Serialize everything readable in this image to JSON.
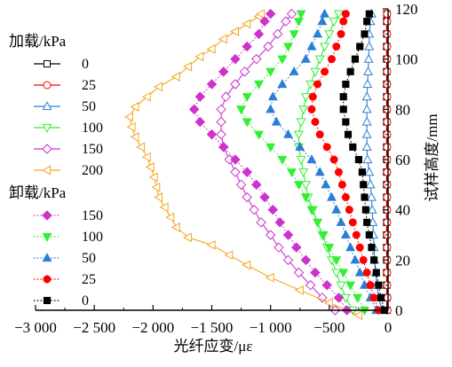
{
  "chart_data": {
    "type": "line",
    "xlabel": "光纤应变/με",
    "ylabel": "试样高度/mm",
    "xlim": [
      -3000,
      0
    ],
    "ylim": [
      0,
      120
    ],
    "x_ticks": [
      -3000,
      -2500,
      -2000,
      -1500,
      -1000,
      -500,
      0
    ],
    "x_tick_labels": [
      "−3 000",
      "−2 500",
      "−2 000",
      "−1 500",
      "−1 000",
      "−500",
      "0"
    ],
    "y_ticks": [
      0,
      20,
      40,
      60,
      80,
      100,
      120
    ],
    "y_tick_labels": [
      "0",
      "20",
      "40",
      "60",
      "80",
      "100",
      "120"
    ],
    "legend_groups": [
      {
        "title": "加载/kPa"
      },
      {
        "title": "卸载/kPa"
      }
    ],
    "series": [
      {
        "name": "0",
        "group": 0,
        "color": "#000000",
        "marker": "square",
        "filled": false,
        "line": "solid",
        "points": [
          [
            -10,
            0
          ],
          [
            -10,
            5
          ],
          [
            -12,
            10
          ],
          [
            -12,
            15
          ],
          [
            -12,
            20
          ],
          [
            -12,
            25
          ],
          [
            -12,
            30
          ],
          [
            -12,
            35
          ],
          [
            -12,
            40
          ],
          [
            -12,
            45
          ],
          [
            -12,
            50
          ],
          [
            -12,
            55
          ],
          [
            -12,
            60
          ],
          [
            -12,
            65
          ],
          [
            -12,
            70
          ],
          [
            -12,
            75
          ],
          [
            -12,
            80
          ],
          [
            -12,
            85
          ],
          [
            -12,
            90
          ],
          [
            -12,
            95
          ],
          [
            -12,
            100
          ],
          [
            -12,
            105
          ],
          [
            -12,
            110
          ],
          [
            -12,
            115
          ],
          [
            -10,
            118
          ]
        ]
      },
      {
        "name": "25",
        "group": 0,
        "color": "#ff0000",
        "marker": "circle",
        "filled": false,
        "line": "solid",
        "points": [
          [
            -5,
            0
          ],
          [
            -5,
            5
          ],
          [
            -8,
            10
          ],
          [
            -8,
            15
          ],
          [
            -8,
            20
          ],
          [
            -8,
            25
          ],
          [
            -8,
            30
          ],
          [
            -8,
            35
          ],
          [
            -8,
            40
          ],
          [
            -8,
            45
          ],
          [
            -8,
            50
          ],
          [
            -8,
            55
          ],
          [
            -8,
            60
          ],
          [
            -8,
            65
          ],
          [
            -8,
            70
          ],
          [
            -8,
            75
          ],
          [
            -8,
            80
          ],
          [
            -8,
            85
          ],
          [
            -8,
            90
          ],
          [
            -8,
            95
          ],
          [
            -8,
            100
          ],
          [
            -8,
            105
          ],
          [
            -8,
            110
          ],
          [
            -8,
            115
          ],
          [
            -8,
            118
          ]
        ]
      },
      {
        "name": "50",
        "group": 0,
        "color": "#2a7fd4",
        "marker": "triangle-up",
        "filled": false,
        "line": "solid",
        "points": [
          [
            -50,
            0
          ],
          [
            -80,
            5
          ],
          [
            -95,
            10
          ],
          [
            -105,
            15
          ],
          [
            -115,
            20
          ],
          [
            -120,
            25
          ],
          [
            -125,
            30
          ],
          [
            -130,
            35
          ],
          [
            -135,
            40
          ],
          [
            -140,
            45
          ],
          [
            -150,
            50
          ],
          [
            -160,
            55
          ],
          [
            -175,
            60
          ],
          [
            -180,
            65
          ],
          [
            -180,
            70
          ],
          [
            -180,
            75
          ],
          [
            -180,
            80
          ],
          [
            -180,
            85
          ],
          [
            -175,
            90
          ],
          [
            -170,
            95
          ],
          [
            -165,
            100
          ],
          [
            -160,
            105
          ],
          [
            -160,
            110
          ],
          [
            -150,
            115
          ],
          [
            -140,
            118
          ]
        ]
      },
      {
        "name": "100",
        "group": 0,
        "color": "#33ee33",
        "marker": "triangle-down",
        "filled": false,
        "line": "solid",
        "points": [
          [
            -300,
            0
          ],
          [
            -360,
            5
          ],
          [
            -400,
            10
          ],
          [
            -440,
            15
          ],
          [
            -480,
            20
          ],
          [
            -520,
            25
          ],
          [
            -560,
            30
          ],
          [
            -600,
            35
          ],
          [
            -640,
            40
          ],
          [
            -680,
            45
          ],
          [
            -700,
            50
          ],
          [
            -720,
            55
          ],
          [
            -740,
            60
          ],
          [
            -760,
            65
          ],
          [
            -760,
            70
          ],
          [
            -740,
            75
          ],
          [
            -720,
            80
          ],
          [
            -700,
            85
          ],
          [
            -660,
            90
          ],
          [
            -620,
            95
          ],
          [
            -580,
            100
          ],
          [
            -540,
            105
          ],
          [
            -500,
            110
          ],
          [
            -460,
            115
          ],
          [
            -420,
            118
          ]
        ]
      },
      {
        "name": "150",
        "group": 0,
        "color": "#cc33cc",
        "marker": "diamond",
        "filled": false,
        "line": "solid",
        "points": [
          [
            -450,
            0
          ],
          [
            -560,
            5
          ],
          [
            -660,
            10
          ],
          [
            -760,
            15
          ],
          [
            -850,
            20
          ],
          [
            -930,
            25
          ],
          [
            -1000,
            30
          ],
          [
            -1080,
            35
          ],
          [
            -1140,
            40
          ],
          [
            -1200,
            45
          ],
          [
            -1250,
            50
          ],
          [
            -1300,
            55
          ],
          [
            -1350,
            60
          ],
          [
            -1400,
            65
          ],
          [
            -1420,
            70
          ],
          [
            -1420,
            75
          ],
          [
            -1420,
            80
          ],
          [
            -1380,
            85
          ],
          [
            -1300,
            90
          ],
          [
            -1220,
            95
          ],
          [
            -1120,
            100
          ],
          [
            -1020,
            105
          ],
          [
            -940,
            110
          ],
          [
            -870,
            115
          ],
          [
            -820,
            118
          ]
        ]
      },
      {
        "name": "200",
        "group": 0,
        "color": "#f5a623",
        "marker": "triangle-left",
        "filled": false,
        "line": "solid",
        "points": [
          [
            -250,
            -2
          ],
          [
            -500,
            3
          ],
          [
            -750,
            8
          ],
          [
            -1000,
            13
          ],
          [
            -1200,
            18
          ],
          [
            -1350,
            22
          ],
          [
            -1500,
            26
          ],
          [
            -1700,
            29
          ],
          [
            -1800,
            33
          ],
          [
            -1850,
            37
          ],
          [
            -1900,
            41
          ],
          [
            -1950,
            45
          ],
          [
            -1970,
            49
          ],
          [
            -1990,
            53
          ],
          [
            -2020,
            57
          ],
          [
            -2050,
            61
          ],
          [
            -2100,
            65
          ],
          [
            -2150,
            69
          ],
          [
            -2180,
            73
          ],
          [
            -2200,
            77
          ],
          [
            -2150,
            81
          ],
          [
            -2050,
            85
          ],
          [
            -1950,
            89
          ],
          [
            -1800,
            93
          ],
          [
            -1700,
            97
          ],
          [
            -1600,
            101
          ],
          [
            -1500,
            104
          ],
          [
            -1400,
            108
          ],
          [
            -1300,
            111
          ],
          [
            -1200,
            114
          ],
          [
            -1100,
            117
          ],
          [
            -1080,
            118
          ]
        ]
      },
      {
        "name": "150",
        "group": 1,
        "color": "#cc33cc",
        "marker": "diamond",
        "filled": true,
        "line": "dotted",
        "points": [
          [
            -350,
            0
          ],
          [
            -420,
            5
          ],
          [
            -520,
            10
          ],
          [
            -620,
            15
          ],
          [
            -700,
            20
          ],
          [
            -780,
            25
          ],
          [
            -850,
            30
          ],
          [
            -920,
            35
          ],
          [
            -980,
            40
          ],
          [
            -1050,
            45
          ],
          [
            -1120,
            50
          ],
          [
            -1200,
            55
          ],
          [
            -1300,
            60
          ],
          [
            -1400,
            65
          ],
          [
            -1500,
            70
          ],
          [
            -1600,
            75
          ],
          [
            -1650,
            80
          ],
          [
            -1600,
            85
          ],
          [
            -1500,
            90
          ],
          [
            -1400,
            95
          ],
          [
            -1300,
            100
          ],
          [
            -1200,
            105
          ],
          [
            -1100,
            110
          ],
          [
            -1050,
            115
          ],
          [
            -1000,
            118
          ]
        ]
      },
      {
        "name": "100",
        "group": 1,
        "color": "#33ee33",
        "marker": "triangle-down",
        "filled": true,
        "line": "dotted",
        "points": [
          [
            -200,
            0
          ],
          [
            -260,
            5
          ],
          [
            -320,
            10
          ],
          [
            -380,
            15
          ],
          [
            -440,
            20
          ],
          [
            -500,
            25
          ],
          [
            -550,
            30
          ],
          [
            -600,
            35
          ],
          [
            -650,
            40
          ],
          [
            -700,
            45
          ],
          [
            -760,
            50
          ],
          [
            -820,
            55
          ],
          [
            -900,
            60
          ],
          [
            -1000,
            65
          ],
          [
            -1100,
            70
          ],
          [
            -1200,
            75
          ],
          [
            -1250,
            80
          ],
          [
            -1200,
            85
          ],
          [
            -1100,
            90
          ],
          [
            -1000,
            95
          ],
          [
            -900,
            100
          ],
          [
            -850,
            105
          ],
          [
            -800,
            110
          ],
          [
            -760,
            115
          ],
          [
            -740,
            118
          ]
        ]
      },
      {
        "name": "50",
        "group": 1,
        "color": "#2a7fd4",
        "marker": "triangle-up",
        "filled": true,
        "line": "dotted",
        "points": [
          [
            -100,
            0
          ],
          [
            -150,
            5
          ],
          [
            -200,
            10
          ],
          [
            -240,
            15
          ],
          [
            -280,
            20
          ],
          [
            -320,
            25
          ],
          [
            -360,
            30
          ],
          [
            -400,
            35
          ],
          [
            -440,
            40
          ],
          [
            -480,
            45
          ],
          [
            -530,
            50
          ],
          [
            -580,
            55
          ],
          [
            -650,
            60
          ],
          [
            -750,
            65
          ],
          [
            -850,
            70
          ],
          [
            -950,
            75
          ],
          [
            -1000,
            80
          ],
          [
            -980,
            85
          ],
          [
            -900,
            90
          ],
          [
            -800,
            95
          ],
          [
            -700,
            100
          ],
          [
            -650,
            105
          ],
          [
            -600,
            110
          ],
          [
            -560,
            115
          ],
          [
            -540,
            118
          ]
        ]
      },
      {
        "name": "25",
        "group": 1,
        "color": "#ff0000",
        "marker": "circle",
        "filled": true,
        "line": "dotted",
        "points": [
          [
            -80,
            0
          ],
          [
            -120,
            5
          ],
          [
            -150,
            10
          ],
          [
            -180,
            15
          ],
          [
            -210,
            20
          ],
          [
            -240,
            25
          ],
          [
            -270,
            30
          ],
          [
            -300,
            35
          ],
          [
            -330,
            40
          ],
          [
            -360,
            45
          ],
          [
            -390,
            50
          ],
          [
            -420,
            55
          ],
          [
            -460,
            60
          ],
          [
            -520,
            65
          ],
          [
            -580,
            70
          ],
          [
            -620,
            75
          ],
          [
            -650,
            80
          ],
          [
            -640,
            85
          ],
          [
            -600,
            90
          ],
          [
            -540,
            95
          ],
          [
            -480,
            100
          ],
          [
            -440,
            105
          ],
          [
            -400,
            110
          ],
          [
            -380,
            115
          ],
          [
            -360,
            118
          ]
        ]
      },
      {
        "name": "0",
        "group": 1,
        "color": "#000000",
        "marker": "square",
        "filled": true,
        "line": "dotted",
        "points": [
          [
            -30,
            0
          ],
          [
            -60,
            5
          ],
          [
            -80,
            10
          ],
          [
            -100,
            15
          ],
          [
            -120,
            20
          ],
          [
            -140,
            25
          ],
          [
            -160,
            30
          ],
          [
            -180,
            35
          ],
          [
            -190,
            40
          ],
          [
            -200,
            45
          ],
          [
            -210,
            50
          ],
          [
            -220,
            55
          ],
          [
            -250,
            60
          ],
          [
            -300,
            65
          ],
          [
            -340,
            70
          ],
          [
            -360,
            75
          ],
          [
            -380,
            80
          ],
          [
            -380,
            85
          ],
          [
            -360,
            90
          ],
          [
            -320,
            95
          ],
          [
            -280,
            100
          ],
          [
            -240,
            105
          ],
          [
            -200,
            110
          ],
          [
            -180,
            115
          ],
          [
            -160,
            118
          ]
        ]
      }
    ]
  }
}
